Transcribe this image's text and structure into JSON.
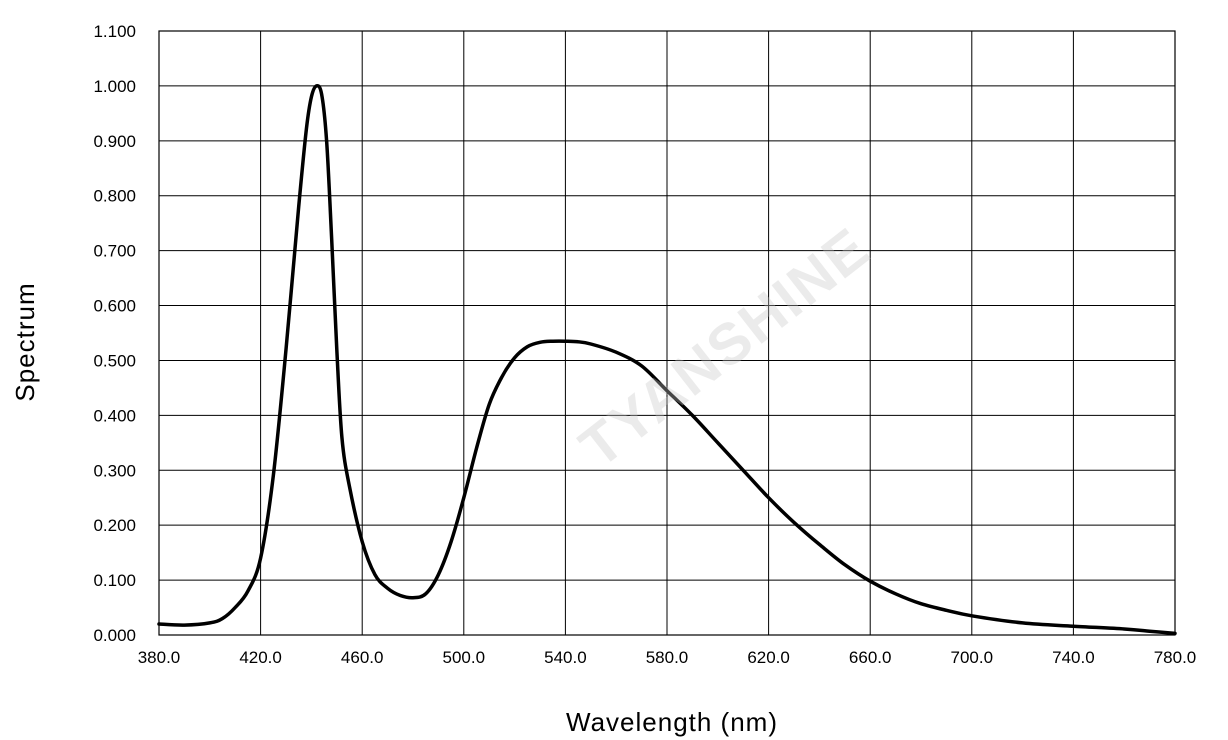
{
  "chart_data": {
    "type": "line",
    "title": "",
    "xlabel": "Wavelength (nm)",
    "ylabel": "Spectrum",
    "xlim": [
      380,
      780
    ],
    "ylim": [
      0,
      1.1
    ],
    "grid": true,
    "legend": "none",
    "x_ticks": [
      "380.0",
      "420.0",
      "460.0",
      "500.0",
      "540.0",
      "580.0",
      "620.0",
      "660.0",
      "700.0",
      "740.0",
      "780.0"
    ],
    "y_ticks": [
      "0.000",
      "0.100",
      "0.200",
      "0.300",
      "0.400",
      "0.500",
      "0.600",
      "0.700",
      "0.800",
      "0.900",
      "1.000",
      "1.100"
    ],
    "series": [
      {
        "color": "#000000",
        "x": [
          380,
          390,
          400,
          405,
          410,
          415,
          420,
          425,
          430,
          435,
          438,
          440,
          442,
          444,
          446,
          448,
          450,
          452,
          455,
          460,
          465,
          470,
          475,
          480,
          485,
          490,
          495,
          500,
          505,
          510,
          515,
          520,
          525,
          530,
          535,
          540,
          545,
          550,
          560,
          570,
          580,
          590,
          600,
          610,
          620,
          630,
          640,
          650,
          660,
          670,
          680,
          690,
          700,
          720,
          740,
          760,
          770,
          780
        ],
        "y": [
          0.02,
          0.018,
          0.022,
          0.03,
          0.05,
          0.08,
          0.14,
          0.29,
          0.52,
          0.78,
          0.92,
          0.98,
          1.0,
          0.985,
          0.9,
          0.72,
          0.52,
          0.36,
          0.27,
          0.17,
          0.11,
          0.085,
          0.072,
          0.068,
          0.075,
          0.11,
          0.17,
          0.25,
          0.34,
          0.42,
          0.47,
          0.505,
          0.525,
          0.533,
          0.535,
          0.535,
          0.534,
          0.53,
          0.515,
          0.49,
          0.445,
          0.4,
          0.35,
          0.3,
          0.25,
          0.205,
          0.165,
          0.128,
          0.098,
          0.075,
          0.057,
          0.045,
          0.035,
          0.022,
          0.016,
          0.011,
          0.007,
          0.003
        ]
      }
    ]
  }
}
